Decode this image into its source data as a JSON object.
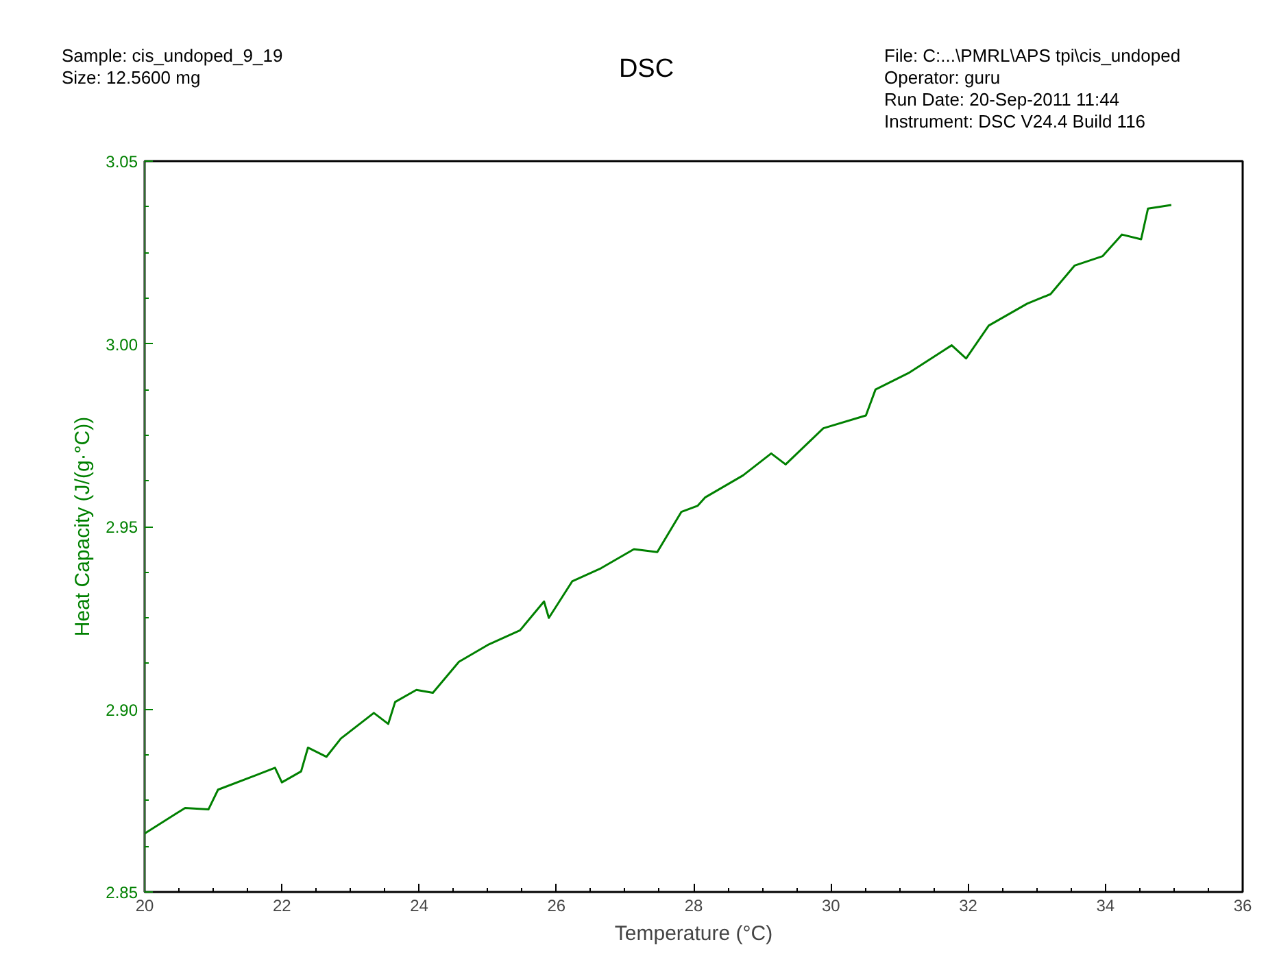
{
  "chart_data": {
    "type": "line",
    "title": "DSC",
    "xlabel": "Temperature (°C)",
    "ylabel": "Heat Capacity (J/(g·°C))",
    "annotations": [
      "Sample: cis_undoped_9_19",
      "Size:  12.5600 mg",
      "File: C:...\\PMRL\\APS tpi\\cis_undoped",
      "Operator: guru",
      "Run Date: 20-Sep-2011 11:44",
      "Instrument: DSC V24.4 Build 116"
    ],
    "xlim": [
      20,
      36
    ],
    "xticks": [
      20,
      22,
      24,
      26,
      28,
      30,
      32,
      34,
      36
    ],
    "ylim": [
      2.85,
      3.05
    ],
    "yticks": [
      2.85,
      {
        "value": 2.9,
        "label": "2.90"
      },
      2.95,
      {
        "value": 3.0,
        "label": "3.00"
      },
      3.05
    ],
    "marker": "none",
    "line_style": "solid",
    "series": [
      {
        "color": "#008000",
        "x": [
          20.0,
          20.59,
          20.93,
          21.07,
          21.63,
          21.9,
          22.0,
          22.28,
          22.38,
          22.65,
          22.86,
          23.34,
          23.55,
          23.65,
          23.96,
          24.2,
          24.58,
          25.0,
          25.47,
          25.82,
          25.89,
          26.23,
          26.65,
          27.13,
          27.47,
          27.82,
          28.06,
          28.17,
          28.72,
          29.13,
          29.34,
          29.89,
          30.51,
          30.65,
          31.13,
          31.76,
          31.97,
          32.3,
          32.86,
          33.2,
          33.55,
          33.96,
          34.24,
          34.52,
          34.62,
          34.96
        ],
        "values": [
          2.866,
          2.873,
          2.8726,
          2.878,
          2.882,
          2.884,
          2.88,
          2.883,
          2.8895,
          2.887,
          2.892,
          2.899,
          2.896,
          2.902,
          2.9053,
          2.9045,
          2.913,
          2.9176,
          2.9216,
          2.9295,
          2.925,
          2.935,
          2.9386,
          2.9438,
          2.943,
          2.954,
          2.9557,
          2.958,
          2.964,
          2.97,
          2.967,
          2.9769,
          2.9804,
          2.9875,
          2.992,
          2.9996,
          2.996,
          3.005,
          3.011,
          3.0136,
          3.0214,
          3.024,
          3.0299,
          3.0286,
          3.037,
          3.038
        ]
      }
    ]
  }
}
